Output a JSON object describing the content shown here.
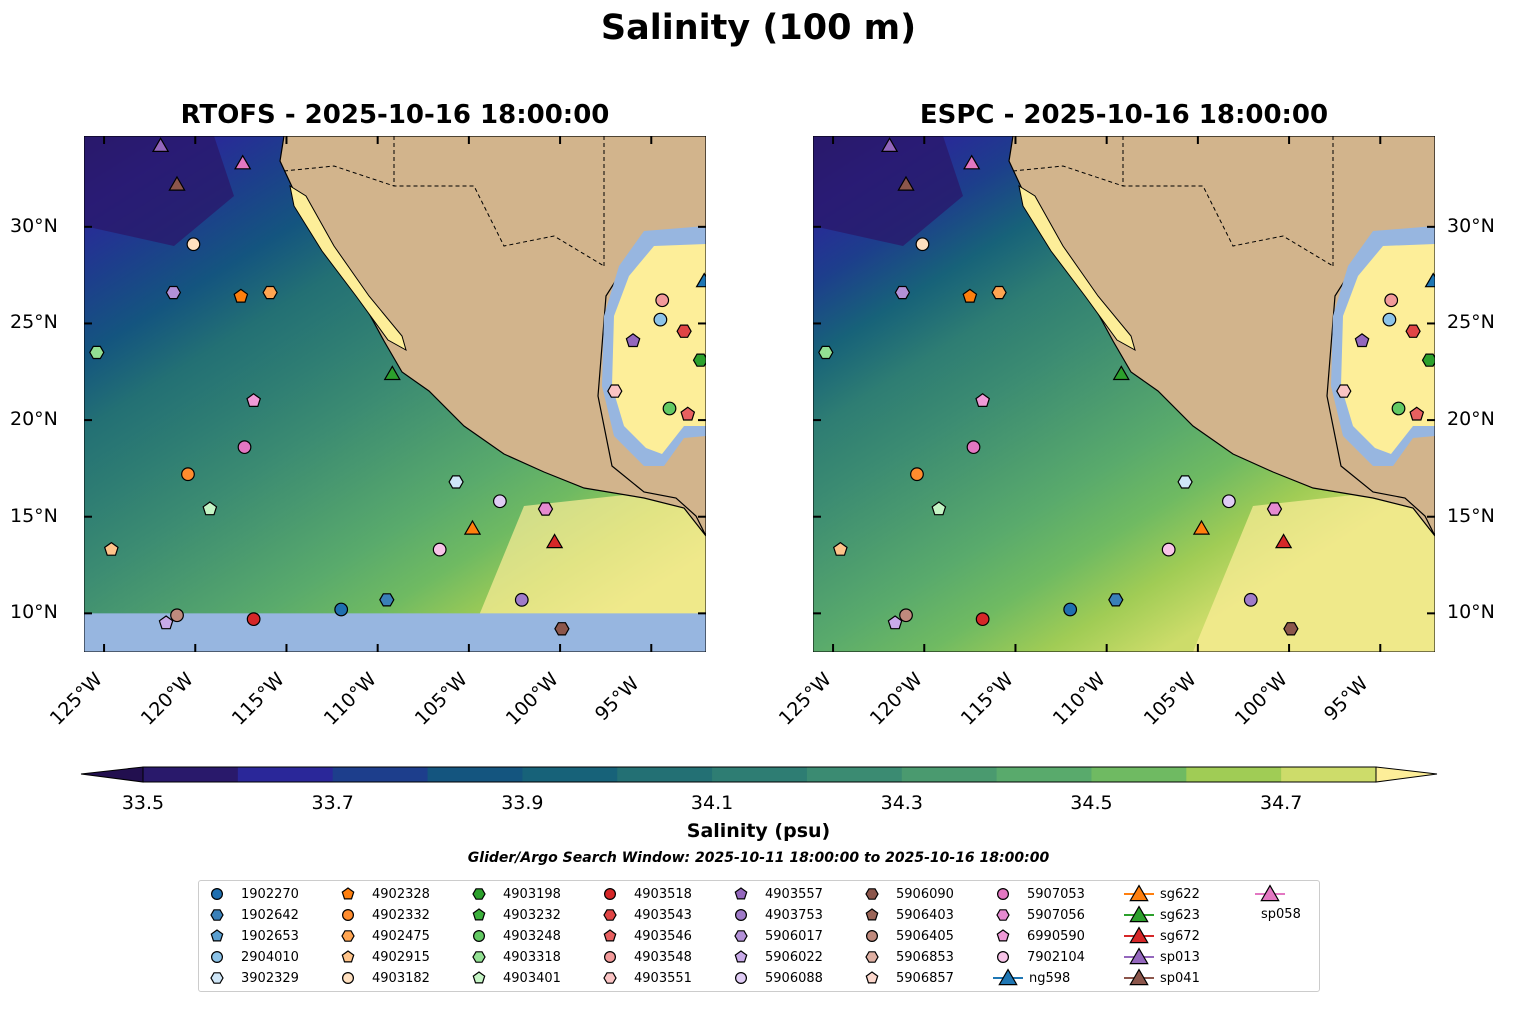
{
  "title": "Salinity (100 m)",
  "panels": [
    {
      "title": "RTOFS - 2025-10-16 18:00:00",
      "lat_side": "left",
      "nodata_south": true
    },
    {
      "title": "ESPC - 2025-10-16 18:00:00",
      "lat_side": "right",
      "nodata_south": false
    }
  ],
  "chart_data": {
    "type": "contour-map",
    "lon_range": [
      -126.1,
      -92.0
    ],
    "lat_range": [
      8.0,
      34.7
    ],
    "lon_ticks": [
      {
        "v": -125,
        "label": "125°W"
      },
      {
        "v": -120,
        "label": "120°W"
      },
      {
        "v": -115,
        "label": "115°W"
      },
      {
        "v": -110,
        "label": "110°W"
      },
      {
        "v": -105,
        "label": "105°W"
      },
      {
        "v": -100,
        "label": "100°W"
      },
      {
        "v": -95,
        "label": "95°W"
      }
    ],
    "lat_ticks": [
      {
        "v": 10,
        "label": "10°N"
      },
      {
        "v": 15,
        "label": "15°N"
      },
      {
        "v": 20,
        "label": "20°N"
      },
      {
        "v": 25,
        "label": "25°N"
      },
      {
        "v": 30,
        "label": "30°N"
      }
    ],
    "colorbar": {
      "label": "Salinity (psu)",
      "min": 33.5,
      "max": 34.8,
      "step": 0.1,
      "ticks": [
        "33.5",
        "33.7",
        "33.9",
        "34.1",
        "34.3",
        "34.5",
        "34.7"
      ],
      "colors": [
        "#29196b",
        "#2a2799",
        "#1d3e8c",
        "#14557f",
        "#176279",
        "#237074",
        "#2e7d73",
        "#3b8b72",
        "#4a9a6f",
        "#59aa6c",
        "#6fba62",
        "#a0cc55",
        "#cddc6a"
      ],
      "under": "#220f4f",
      "over": "#fdee99"
    },
    "land_color": "#d2b48c",
    "nodata_color": "#97b6e0"
  },
  "search_window": "Glider/Argo Search Window: 2025-10-11 18:00:00 to 2025-10-16 18:00:00",
  "platforms": [
    {
      "id": "1902270",
      "shape": "circle",
      "color": "#1f6fb0",
      "lon": -112.0,
      "lat": 10.2
    },
    {
      "id": "1902642",
      "shape": "hexagon",
      "color": "#3a80b8",
      "lon": -109.5,
      "lat": 10.7
    },
    {
      "id": "1902653",
      "shape": "pentagon",
      "color": "#5a9fd0"
    },
    {
      "id": "2904010",
      "shape": "circle",
      "color": "#8cc3e8",
      "lon": -94.5,
      "lat": 25.2
    },
    {
      "id": "3902329",
      "shape": "hexagon",
      "color": "#cfe6f7",
      "lon": -105.7,
      "lat": 16.8
    },
    {
      "id": "4902328",
      "shape": "pentagon",
      "color": "#ff7f0e",
      "lon": -117.5,
      "lat": 26.4
    },
    {
      "id": "4902332",
      "shape": "circle",
      "color": "#ff8c2e",
      "lon": -120.4,
      "lat": 17.2
    },
    {
      "id": "4902475",
      "shape": "hexagon",
      "color": "#ffa552",
      "lon": -115.9,
      "lat": 26.6
    },
    {
      "id": "4902915",
      "shape": "pentagon",
      "color": "#ffc48a",
      "lon": -124.6,
      "lat": 13.3
    },
    {
      "id": "4903182",
      "shape": "circle",
      "color": "#ffe0c0",
      "lon": -120.1,
      "lat": 29.1
    },
    {
      "id": "4903198",
      "shape": "hexagon",
      "color": "#2ca02c",
      "lon": -92.3,
      "lat": 23.1
    },
    {
      "id": "4903232",
      "shape": "pentagon",
      "color": "#3cb03c"
    },
    {
      "id": "4903248",
      "shape": "circle",
      "color": "#63c963",
      "lon": -94.0,
      "lat": 20.6
    },
    {
      "id": "4903318",
      "shape": "hexagon",
      "color": "#93e093",
      "lon": -125.4,
      "lat": 23.5
    },
    {
      "id": "4903401",
      "shape": "pentagon",
      "color": "#c5f5c5",
      "lon": -119.2,
      "lat": 15.4
    },
    {
      "id": "4903518",
      "shape": "circle",
      "color": "#d62728",
      "lon": -116.8,
      "lat": 9.7
    },
    {
      "id": "4903543",
      "shape": "hexagon",
      "color": "#e04545",
      "lon": -93.2,
      "lat": 24.6
    },
    {
      "id": "4903546",
      "shape": "pentagon",
      "color": "#e86060",
      "lon": -93.0,
      "lat": 20.3
    },
    {
      "id": "4903548",
      "shape": "circle",
      "color": "#f29a9a",
      "lon": -94.4,
      "lat": 26.2
    },
    {
      "id": "4903551",
      "shape": "hexagon",
      "color": "#fac4c4",
      "lon": -97.0,
      "lat": 21.5
    },
    {
      "id": "4903557",
      "shape": "pentagon",
      "color": "#9467bd",
      "lon": -96.0,
      "lat": 24.1
    },
    {
      "id": "4903753",
      "shape": "circle",
      "color": "#a07bc9",
      "lon": -102.1,
      "lat": 10.7
    },
    {
      "id": "5906017",
      "shape": "hexagon",
      "color": "#b391d8",
      "lon": -121.2,
      "lat": 26.6
    },
    {
      "id": "5906022",
      "shape": "pentagon",
      "color": "#c8aae8",
      "lon": -121.6,
      "lat": 9.5
    },
    {
      "id": "5906088",
      "shape": "circle",
      "color": "#e0ccf5",
      "lon": -103.3,
      "lat": 15.8
    },
    {
      "id": "5906090",
      "shape": "hexagon",
      "color": "#8c564b",
      "lon": -99.9,
      "lat": 9.2
    },
    {
      "id": "5906403",
      "shape": "pentagon",
      "color": "#9b6558"
    },
    {
      "id": "5906405",
      "shape": "circle",
      "color": "#c08a7d",
      "lon": -121.0,
      "lat": 9.9
    },
    {
      "id": "5906853",
      "shape": "hexagon",
      "color": "#dfb0a3"
    },
    {
      "id": "5906857",
      "shape": "pentagon",
      "color": "#fcd7cc"
    },
    {
      "id": "5907053",
      "shape": "circle",
      "color": "#e377c2",
      "lon": -117.3,
      "lat": 18.6
    },
    {
      "id": "5907056",
      "shape": "hexagon",
      "color": "#e58ad0",
      "lon": -100.8,
      "lat": 15.4
    },
    {
      "id": "6990590",
      "shape": "pentagon",
      "color": "#f09ad8",
      "lon": -116.8,
      "lat": 21.0
    },
    {
      "id": "7902104",
      "shape": "circle",
      "color": "#f8c4e8",
      "lon": -106.6,
      "lat": 13.3
    },
    {
      "id": "ng598",
      "shape": "triangle",
      "color": "#1f77b4",
      "lon": -92.1,
      "lat": 27.2
    },
    {
      "id": "sg622",
      "shape": "triangle",
      "color": "#ff7f0e",
      "lon": -104.8,
      "lat": 14.4
    },
    {
      "id": "sg623",
      "shape": "triangle",
      "color": "#2ca02c",
      "lon": -109.2,
      "lat": 22.4
    },
    {
      "id": "sg672",
      "shape": "triangle",
      "color": "#d62728",
      "lon": -100.3,
      "lat": 13.7
    },
    {
      "id": "sp013",
      "shape": "triangle",
      "color": "#9467bd",
      "lon": -121.9,
      "lat": 34.2
    },
    {
      "id": "sp041",
      "shape": "triangle",
      "color": "#8c564b",
      "lon": -121.0,
      "lat": 32.2
    },
    {
      "id": "sp058",
      "shape": "triangle",
      "color": "#e377c2",
      "lon": -117.4,
      "lat": 33.3
    }
  ]
}
